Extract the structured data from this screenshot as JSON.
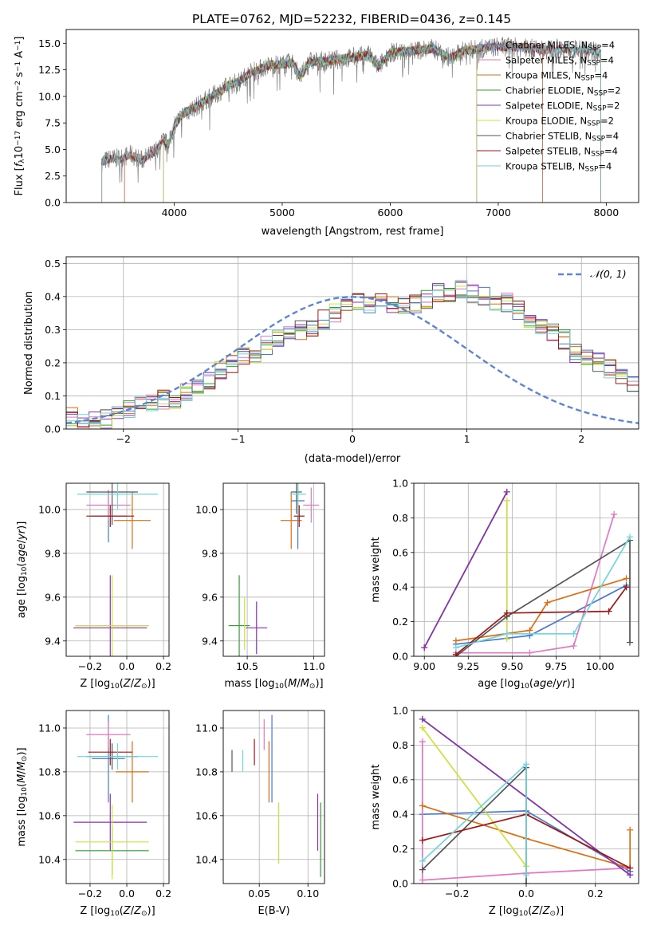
{
  "figure": {
    "title": "PLATE=0762, MJD=52232, FIBERID=0436, z=0.145"
  },
  "colors": {
    "Chabrier MILES": "#4878cf",
    "Salpeter MILES": "#e377c2",
    "Kroupa MILES": "#dd6d10",
    "Chabrier ELODIE": "#2ca02c",
    "Salpeter ELODIE": "#8e2fb8",
    "Kroupa ELODIE": "#cfe03a",
    "Chabrier STELIB": "#555555",
    "Salpeter STELIB": "#a01515",
    "Kroupa STELIB": "#6fd6dc"
  },
  "chart_data": [
    {
      "id": "spectrum",
      "type": "line",
      "title": "PLATE=0762, MJD=52232, FIBERID=0436, z=0.145",
      "xlabel": "wavelength [Angstrom, rest frame]",
      "ylabel": "Flux [f_λ 10^-17 erg cm^-2 s^-1 A^-1]",
      "xlim": [
        3000,
        8300
      ],
      "ylim": [
        0,
        16.3
      ],
      "xticks": [
        4000,
        5000,
        6000,
        7000,
        8000
      ],
      "yticks": [
        0.0,
        2.5,
        5.0,
        7.5,
        10.0,
        12.5,
        15.0
      ],
      "grid": false,
      "legend_position": "top-right",
      "observed_x": [
        3330,
        3400,
        3500,
        3600,
        3700,
        3800,
        3850,
        3900,
        3950,
        4000,
        4100,
        4200,
        4300,
        4400,
        4500,
        4600,
        4700,
        4800,
        4900,
        5000,
        5100,
        5170,
        5250,
        5400,
        5600,
        5800,
        5890,
        6000,
        6200,
        6400,
        6563,
        6700,
        6800,
        7000,
        7200,
        7400,
        7600,
        7800,
        7950
      ],
      "observed_y": [
        3.8,
        4.1,
        4.2,
        4.5,
        4.0,
        4.6,
        5.2,
        5.8,
        5.4,
        7.3,
        8.5,
        9.0,
        9.7,
        10.3,
        11.0,
        11.4,
        12.2,
        12.6,
        13.0,
        13.0,
        13.2,
        11.8,
        13.3,
        13.3,
        13.6,
        13.9,
        12.8,
        14.1,
        14.3,
        14.5,
        13.6,
        14.4,
        14.4,
        14.7,
        14.6,
        14.4,
        14.5,
        14.3,
        14.2
      ],
      "series": [
        {
          "name": "Chabrier MILES",
          "label": "Chabrier MILES, N_SSP=4",
          "n_ssp": 4,
          "range": [
            3540,
            7410
          ]
        },
        {
          "name": "Salpeter MILES",
          "label": "Salpeter MILES, N_SSP=4",
          "n_ssp": 4,
          "range": [
            3540,
            7410
          ]
        },
        {
          "name": "Kroupa MILES",
          "label": "Kroupa MILES, N_SSP=4",
          "n_ssp": 4,
          "range": [
            3540,
            7410
          ]
        },
        {
          "name": "Chabrier ELODIE",
          "label": "Chabrier ELODIE, N_SSP=2",
          "n_ssp": 2,
          "range": [
            3900,
            6800
          ]
        },
        {
          "name": "Salpeter ELODIE",
          "label": "Salpeter ELODIE, N_SSP=2",
          "n_ssp": 2,
          "range": [
            3900,
            6800
          ]
        },
        {
          "name": "Kroupa ELODIE",
          "label": "Kroupa ELODIE, N_SSP=2",
          "n_ssp": 2,
          "range": [
            3900,
            6800
          ]
        },
        {
          "name": "Chabrier STELIB",
          "label": "Chabrier STELIB, N_SSP=4",
          "n_ssp": 4,
          "range": [
            3330,
            7950
          ]
        },
        {
          "name": "Salpeter STELIB",
          "label": "Salpeter STELIB, N_SSP=4",
          "n_ssp": 4,
          "range": [
            3330,
            7950
          ]
        },
        {
          "name": "Kroupa STELIB",
          "label": "Kroupa STELIB, N_SSP=4",
          "n_ssp": 4,
          "range": [
            3330,
            7950
          ]
        }
      ]
    },
    {
      "id": "residuals",
      "type": "area",
      "xlabel": "(data-model)/error",
      "ylabel": "Normed distribution",
      "xlim": [
        -2.5,
        2.5
      ],
      "ylim": [
        0,
        0.52
      ],
      "xticks": [
        -2,
        -1,
        0,
        1,
        2
      ],
      "yticks": [
        0.0,
        0.1,
        0.2,
        0.3,
        0.4,
        0.5
      ],
      "grid": true,
      "legend_position": "top-right",
      "reference_curve": "N(0,1)",
      "bin_width": 0.1,
      "bin_start": -2.5,
      "hist_values": [
        0.04,
        0.02,
        0.03,
        0.03,
        0.04,
        0.06,
        0.07,
        0.08,
        0.09,
        0.08,
        0.11,
        0.13,
        0.15,
        0.18,
        0.2,
        0.22,
        0.21,
        0.25,
        0.27,
        0.29,
        0.3,
        0.31,
        0.33,
        0.35,
        0.37,
        0.39,
        0.38,
        0.39,
        0.37,
        0.38,
        0.38,
        0.39,
        0.41,
        0.4,
        0.42,
        0.41,
        0.4,
        0.37,
        0.38,
        0.36,
        0.33,
        0.31,
        0.29,
        0.27,
        0.23,
        0.22,
        0.2,
        0.18,
        0.15,
        0.14
      ]
    },
    {
      "id": "age-vs-Z",
      "type": "scatter",
      "xlabel": "Z [log10(Z/Z_sun)]",
      "ylabel": "age [log10(age/yr)]",
      "xlim": [
        -0.33,
        0.23
      ],
      "ylim": [
        9.33,
        10.12
      ],
      "xticks": [
        -0.2,
        0.0,
        0.2
      ],
      "yticks": [
        9.4,
        9.6,
        9.8,
        10.0
      ],
      "grid": true,
      "points": [
        {
          "name": "Chabrier MILES",
          "x": -0.1,
          "xerr": 0.1,
          "y": 9.97,
          "yerr": 0.12
        },
        {
          "name": "Salpeter MILES",
          "x": -0.1,
          "xerr": 0.12,
          "y": 10.02,
          "yerr": 0.07
        },
        {
          "name": "Kroupa MILES",
          "x": 0.03,
          "xerr": 0.1,
          "y": 9.95,
          "yerr": 0.13
        },
        {
          "name": "Chabrier ELODIE",
          "x": -0.08,
          "xerr": 0.2,
          "y": 9.47,
          "yerr": 0.0
        },
        {
          "name": "Salpeter ELODIE",
          "x": -0.09,
          "xerr": 0.2,
          "y": 9.46,
          "yerr": 0.24
        },
        {
          "name": "Kroupa ELODIE",
          "x": -0.08,
          "xerr": 0.2,
          "y": 9.47,
          "yerr": 0.23
        },
        {
          "name": "Chabrier STELIB",
          "x": -0.08,
          "xerr": 0.14,
          "y": 10.08,
          "yerr": 0.15
        },
        {
          "name": "Salpeter STELIB",
          "x": -0.09,
          "xerr": 0.13,
          "y": 9.97,
          "yerr": 0.05
        },
        {
          "name": "Kroupa STELIB",
          "x": -0.05,
          "xerr": 0.22,
          "y": 10.07,
          "yerr": 0.07
        }
      ]
    },
    {
      "id": "age-vs-mass",
      "type": "scatter",
      "xlabel": "mass [log10(M/M_sun)]",
      "xlim": [
        10.32,
        11.08
      ],
      "ylim": [
        9.33,
        10.12
      ],
      "xticks": [
        10.5,
        11.0
      ],
      "yticks": [
        9.4,
        9.6,
        9.8,
        10.0
      ],
      "grid": true,
      "points": [
        {
          "name": "Chabrier MILES",
          "x": 10.88,
          "xerr": 0.05,
          "y": 10.04,
          "yerr": 0.22
        },
        {
          "name": "Salpeter MILES",
          "x": 10.98,
          "xerr": 0.06,
          "y": 10.02,
          "yerr": 0.08
        },
        {
          "name": "Kroupa MILES",
          "x": 10.83,
          "xerr": 0.08,
          "y": 9.95,
          "yerr": 0.13
        },
        {
          "name": "Chabrier ELODIE",
          "x": 10.44,
          "xerr": 0.08,
          "y": 9.47,
          "yerr": 0.23
        },
        {
          "name": "Salpeter ELODIE",
          "x": 10.57,
          "xerr": 0.08,
          "y": 9.46,
          "yerr": 0.12
        },
        {
          "name": "Kroupa ELODIE",
          "x": 10.48,
          "xerr": 0.0,
          "y": 9.48,
          "yerr": 0.12
        },
        {
          "name": "Chabrier STELIB",
          "x": 10.87,
          "xerr": 0.04,
          "y": 10.08,
          "yerr": 0.1
        },
        {
          "name": "Salpeter STELIB",
          "x": 10.89,
          "xerr": 0.04,
          "y": 9.97,
          "yerr": 0.05
        },
        {
          "name": "Kroupa STELIB",
          "x": 10.88,
          "xerr": 0.06,
          "y": 10.07,
          "yerr": 0.1
        }
      ]
    },
    {
      "id": "weight-vs-age",
      "type": "line",
      "xlabel": "age [log10(age/yr)]",
      "ylabel": "mass weight",
      "xlim": [
        8.94,
        10.22
      ],
      "ylim": [
        0.0,
        1.0
      ],
      "xticks": [
        9.0,
        9.25,
        9.5,
        9.75,
        10.0
      ],
      "yticks": [
        0.0,
        0.2,
        0.4,
        0.6,
        0.8,
        1.0
      ],
      "grid": true,
      "series": [
        {
          "name": "Chabrier MILES",
          "x": [
            9.18,
            9.6,
            10.15,
            10.15
          ],
          "y": [
            0.07,
            0.12,
            0.41,
            0.4
          ]
        },
        {
          "name": "Salpeter MILES",
          "x": [
            9.18,
            9.6,
            9.85,
            10.08
          ],
          "y": [
            0.02,
            0.02,
            0.06,
            0.82
          ]
        },
        {
          "name": "Kroupa MILES",
          "x": [
            9.18,
            9.6,
            9.7,
            10.15
          ],
          "y": [
            0.09,
            0.15,
            0.31,
            0.45
          ]
        },
        {
          "name": "Chabrier ELODIE",
          "x": [
            9.0,
            9.47
          ],
          "y": [
            0.05,
            0.95
          ]
        },
        {
          "name": "Salpeter ELODIE",
          "x": [
            9.0,
            9.47
          ],
          "y": [
            0.05,
            0.95
          ]
        },
        {
          "name": "Kroupa ELODIE",
          "x": [
            9.47,
            9.47
          ],
          "y": [
            0.1,
            0.9
          ]
        },
        {
          "name": "Chabrier STELIB",
          "x": [
            9.18,
            9.47,
            10.17,
            10.17
          ],
          "y": [
            0.0,
            0.23,
            0.67,
            0.08
          ]
        },
        {
          "name": "Salpeter STELIB",
          "x": [
            9.18,
            9.47,
            10.05,
            10.15
          ],
          "y": [
            0.01,
            0.25,
            0.26,
            0.4
          ]
        },
        {
          "name": "Kroupa STELIB",
          "x": [
            9.18,
            9.47,
            9.85,
            10.17
          ],
          "y": [
            0.05,
            0.13,
            0.13,
            0.69
          ]
        }
      ]
    },
    {
      "id": "mass-vs-Z",
      "type": "scatter",
      "xlabel": "Z [log10(Z/Z_sun)]",
      "ylabel": "mass [log10(M/M_sun)]",
      "xlim": [
        -0.33,
        0.23
      ],
      "ylim": [
        10.29,
        11.08
      ],
      "xticks": [
        -0.2,
        0.0,
        0.2
      ],
      "yticks": [
        10.4,
        10.6,
        10.8,
        11.0
      ],
      "grid": true,
      "points": [
        {
          "name": "Chabrier MILES",
          "x": -0.1,
          "xerr": 0.09,
          "y": 10.86,
          "yerr": 0.2
        },
        {
          "name": "Salpeter MILES",
          "x": -0.1,
          "xerr": 0.12,
          "y": 10.97,
          "yerr": 0.06
        },
        {
          "name": "Kroupa MILES",
          "x": 0.03,
          "xerr": 0.09,
          "y": 10.8,
          "yerr": 0.14
        },
        {
          "name": "Chabrier ELODIE",
          "x": -0.08,
          "xerr": 0.2,
          "y": 10.44,
          "yerr": 0.11
        },
        {
          "name": "Salpeter ELODIE",
          "x": -0.09,
          "xerr": 0.2,
          "y": 10.57,
          "yerr": 0.13
        },
        {
          "name": "Kroupa ELODIE",
          "x": -0.08,
          "xerr": 0.2,
          "y": 10.48,
          "yerr": 0.17
        },
        {
          "name": "Chabrier STELIB",
          "x": -0.08,
          "xerr": 0.14,
          "y": 10.87,
          "yerr": 0.06
        },
        {
          "name": "Salpeter STELIB",
          "x": -0.09,
          "xerr": 0.12,
          "y": 10.89,
          "yerr": 0.06
        },
        {
          "name": "Kroupa STELIB",
          "x": -0.05,
          "xerr": 0.22,
          "y": 10.87,
          "yerr": 0.06
        }
      ]
    },
    {
      "id": "mass-vs-ebv",
      "type": "scatter",
      "xlabel": "E(B-V)",
      "xlim": [
        0.013,
        0.117
      ],
      "ylim": [
        10.29,
        11.08
      ],
      "xticks": [
        0.05,
        0.1
      ],
      "yticks": [
        10.4,
        10.6,
        10.8,
        11.0
      ],
      "grid": true,
      "points": [
        {
          "name": "Chabrier MILES",
          "x": 0.063,
          "y": 10.86,
          "yerr": 0.2
        },
        {
          "name": "Salpeter MILES",
          "x": 0.055,
          "y": 10.97,
          "yerr": 0.07
        },
        {
          "name": "Kroupa MILES",
          "x": 0.06,
          "y": 10.8,
          "yerr": 0.14
        },
        {
          "name": "Chabrier ELODIE",
          "x": 0.113,
          "y": 10.49,
          "yerr": 0.17
        },
        {
          "name": "Salpeter ELODIE",
          "x": 0.11,
          "y": 10.57,
          "yerr": 0.13
        },
        {
          "name": "Kroupa ELODIE",
          "x": 0.07,
          "y": 10.52,
          "yerr": 0.14
        },
        {
          "name": "Chabrier STELIB",
          "x": 0.022,
          "y": 10.85,
          "yerr": 0.05
        },
        {
          "name": "Salpeter STELIB",
          "x": 0.045,
          "y": 10.89,
          "yerr": 0.06
        },
        {
          "name": "Kroupa STELIB",
          "x": 0.033,
          "y": 10.85,
          "yerr": 0.05
        }
      ]
    },
    {
      "id": "weight-vs-Z",
      "type": "line",
      "xlabel": "Z [log10(Z/Z_sun)]",
      "ylabel": "mass weight",
      "xlim": [
        -0.325,
        0.325
      ],
      "ylim": [
        0.0,
        1.0
      ],
      "xticks": [
        -0.2,
        0.0,
        0.2
      ],
      "yticks": [
        0.0,
        0.2,
        0.4,
        0.6,
        0.8,
        1.0
      ],
      "grid": true,
      "series": [
        {
          "name": "Chabrier MILES",
          "x": [
            -0.3,
            0.0,
            0.3
          ],
          "y": [
            0.4,
            0.42,
            0.07
          ]
        },
        {
          "name": "Salpeter MILES",
          "x": [
            -0.3,
            -0.3,
            0.0,
            0.3
          ],
          "y": [
            0.82,
            0.02,
            0.06,
            0.09
          ]
        },
        {
          "name": "Kroupa MILES",
          "x": [
            -0.3,
            0.0,
            0.3,
            0.3
          ],
          "y": [
            0.45,
            0.26,
            0.09,
            0.31
          ]
        },
        {
          "name": "Chabrier ELODIE",
          "x": [
            -0.3,
            0.3
          ],
          "y": [
            0.95,
            0.05
          ]
        },
        {
          "name": "Salpeter ELODIE",
          "x": [
            -0.3,
            0.3
          ],
          "y": [
            0.95,
            0.05
          ]
        },
        {
          "name": "Kroupa ELODIE",
          "x": [
            -0.3,
            0.0
          ],
          "y": [
            0.9,
            0.1
          ]
        },
        {
          "name": "Chabrier STELIB",
          "x": [
            -0.3,
            0.0,
            0.0
          ],
          "y": [
            0.08,
            0.67,
            0.0
          ]
        },
        {
          "name": "Salpeter STELIB",
          "x": [
            -0.3,
            0.0,
            0.3
          ],
          "y": [
            0.25,
            0.4,
            0.09
          ]
        },
        {
          "name": "Kroupa STELIB",
          "x": [
            -0.3,
            0.0,
            0.0
          ],
          "y": [
            0.13,
            0.69,
            0.05
          ]
        }
      ]
    }
  ]
}
